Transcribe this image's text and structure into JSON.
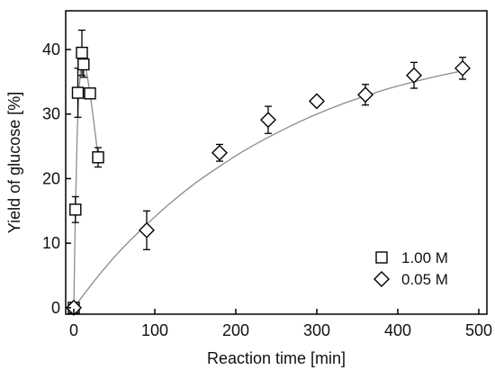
{
  "chart_data": {
    "type": "scatter",
    "xlabel": "Reaction time [min]",
    "ylabel": "Yield of glucose [%]",
    "xlim": [
      -10,
      510
    ],
    "ylim": [
      -1,
      46
    ],
    "xticks": [
      0,
      100,
      200,
      300,
      400,
      500
    ],
    "yticks": [
      0,
      10,
      20,
      30,
      40
    ],
    "grid": false,
    "legend_position": "bottom-right",
    "series": [
      {
        "name": "1.00 M",
        "marker": "square",
        "points": [
          {
            "x": 0,
            "y": 0,
            "err": 0
          },
          {
            "x": 2,
            "y": 15.2,
            "err": 2.0
          },
          {
            "x": 5,
            "y": 33.3,
            "err": 3.8
          },
          {
            "x": 10,
            "y": 39.5,
            "err": 3.5
          },
          {
            "x": 12,
            "y": 37.7,
            "err": 2.0
          },
          {
            "x": 20,
            "y": 33.2,
            "err": 0
          },
          {
            "x": 30,
            "y": 23.3,
            "err": 1.5
          }
        ],
        "fit": [
          [
            0,
            0
          ],
          [
            2,
            15
          ],
          [
            4,
            26
          ],
          [
            6,
            32.5
          ],
          [
            8,
            36.3
          ],
          [
            10,
            38.5
          ],
          [
            12,
            38.6
          ],
          [
            15,
            37
          ],
          [
            20,
            33.2
          ],
          [
            25,
            28.5
          ],
          [
            30,
            23.3
          ]
        ]
      },
      {
        "name": "0.05 M",
        "marker": "diamond",
        "points": [
          {
            "x": 0,
            "y": 0,
            "err": 0
          },
          {
            "x": 90,
            "y": 12,
            "err": 3.0
          },
          {
            "x": 180,
            "y": 24,
            "err": 1.3
          },
          {
            "x": 240,
            "y": 29.1,
            "err": 2.1
          },
          {
            "x": 300,
            "y": 32,
            "err": 0
          },
          {
            "x": 360,
            "y": 33,
            "err": 1.6
          },
          {
            "x": 420,
            "y": 36,
            "err": 2.0
          },
          {
            "x": 480,
            "y": 37.1,
            "err": 1.7
          }
        ],
        "fit": [
          [
            0,
            0
          ],
          [
            20,
            3.3
          ],
          [
            40,
            6.4
          ],
          [
            60,
            9.2
          ],
          [
            90,
            12.9
          ],
          [
            120,
            16.3
          ],
          [
            150,
            19.3
          ],
          [
            180,
            21.9
          ],
          [
            210,
            24.3
          ],
          [
            240,
            26.4
          ],
          [
            270,
            28.3
          ],
          [
            300,
            30.0
          ],
          [
            330,
            31.5
          ],
          [
            360,
            32.8
          ],
          [
            390,
            34.0
          ],
          [
            420,
            35.0
          ],
          [
            450,
            35.9
          ],
          [
            480,
            36.7
          ]
        ]
      }
    ]
  }
}
